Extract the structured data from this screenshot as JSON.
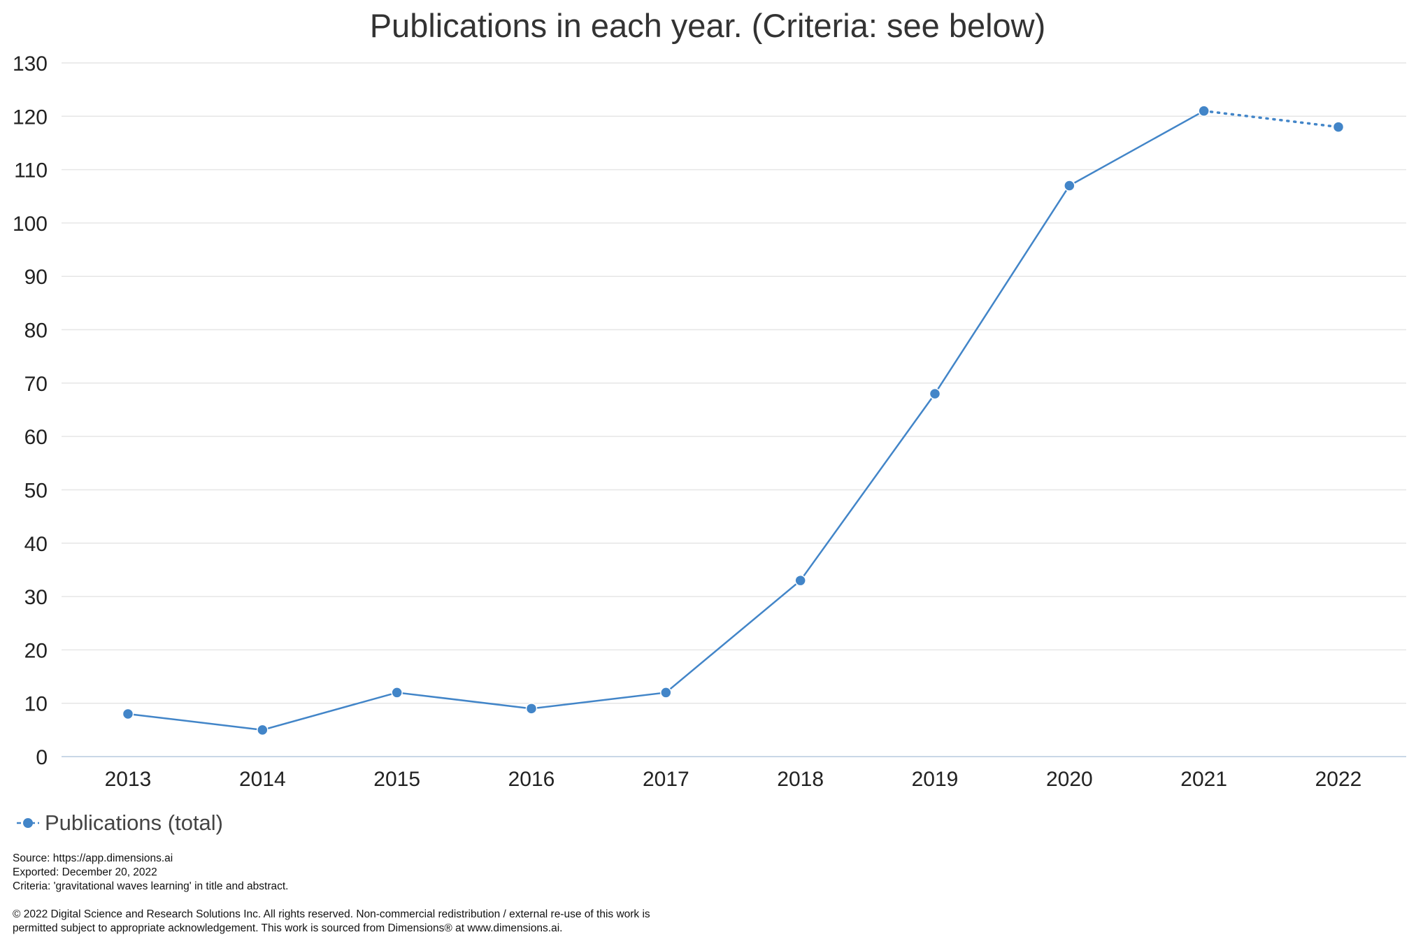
{
  "chart_data": {
    "type": "line",
    "title": "Publications in each year. (Criteria: see below)",
    "xlabel": "",
    "ylabel": "",
    "categories": [
      "2013",
      "2014",
      "2015",
      "2016",
      "2017",
      "2018",
      "2019",
      "2020",
      "2021",
      "2022"
    ],
    "series": [
      {
        "name": "Publications (total)",
        "values": [
          8,
          5,
          12,
          9,
          12,
          33,
          68,
          107,
          121,
          118
        ],
        "color": "#4285c8",
        "dotted_last_segment": true
      }
    ],
    "ylim": [
      0,
      130
    ],
    "yticks": [
      0,
      10,
      20,
      30,
      40,
      50,
      60,
      70,
      80,
      90,
      100,
      110,
      120,
      130
    ],
    "grid": true,
    "legend_position": "bottom-left"
  },
  "footer": {
    "source": "Source: https://app.dimensions.ai",
    "exported": "Exported: December 20, 2022",
    "criteria": "Criteria: 'gravitational waves learning' in title and abstract.",
    "copyright_line1": "© 2022 Digital Science and Research Solutions Inc. All rights reserved. Non-commercial redistribution / external re-use of this work is",
    "copyright_line2": "permitted subject to appropriate acknowledgement. This work is sourced from Dimensions® at www.dimensions.ai."
  }
}
